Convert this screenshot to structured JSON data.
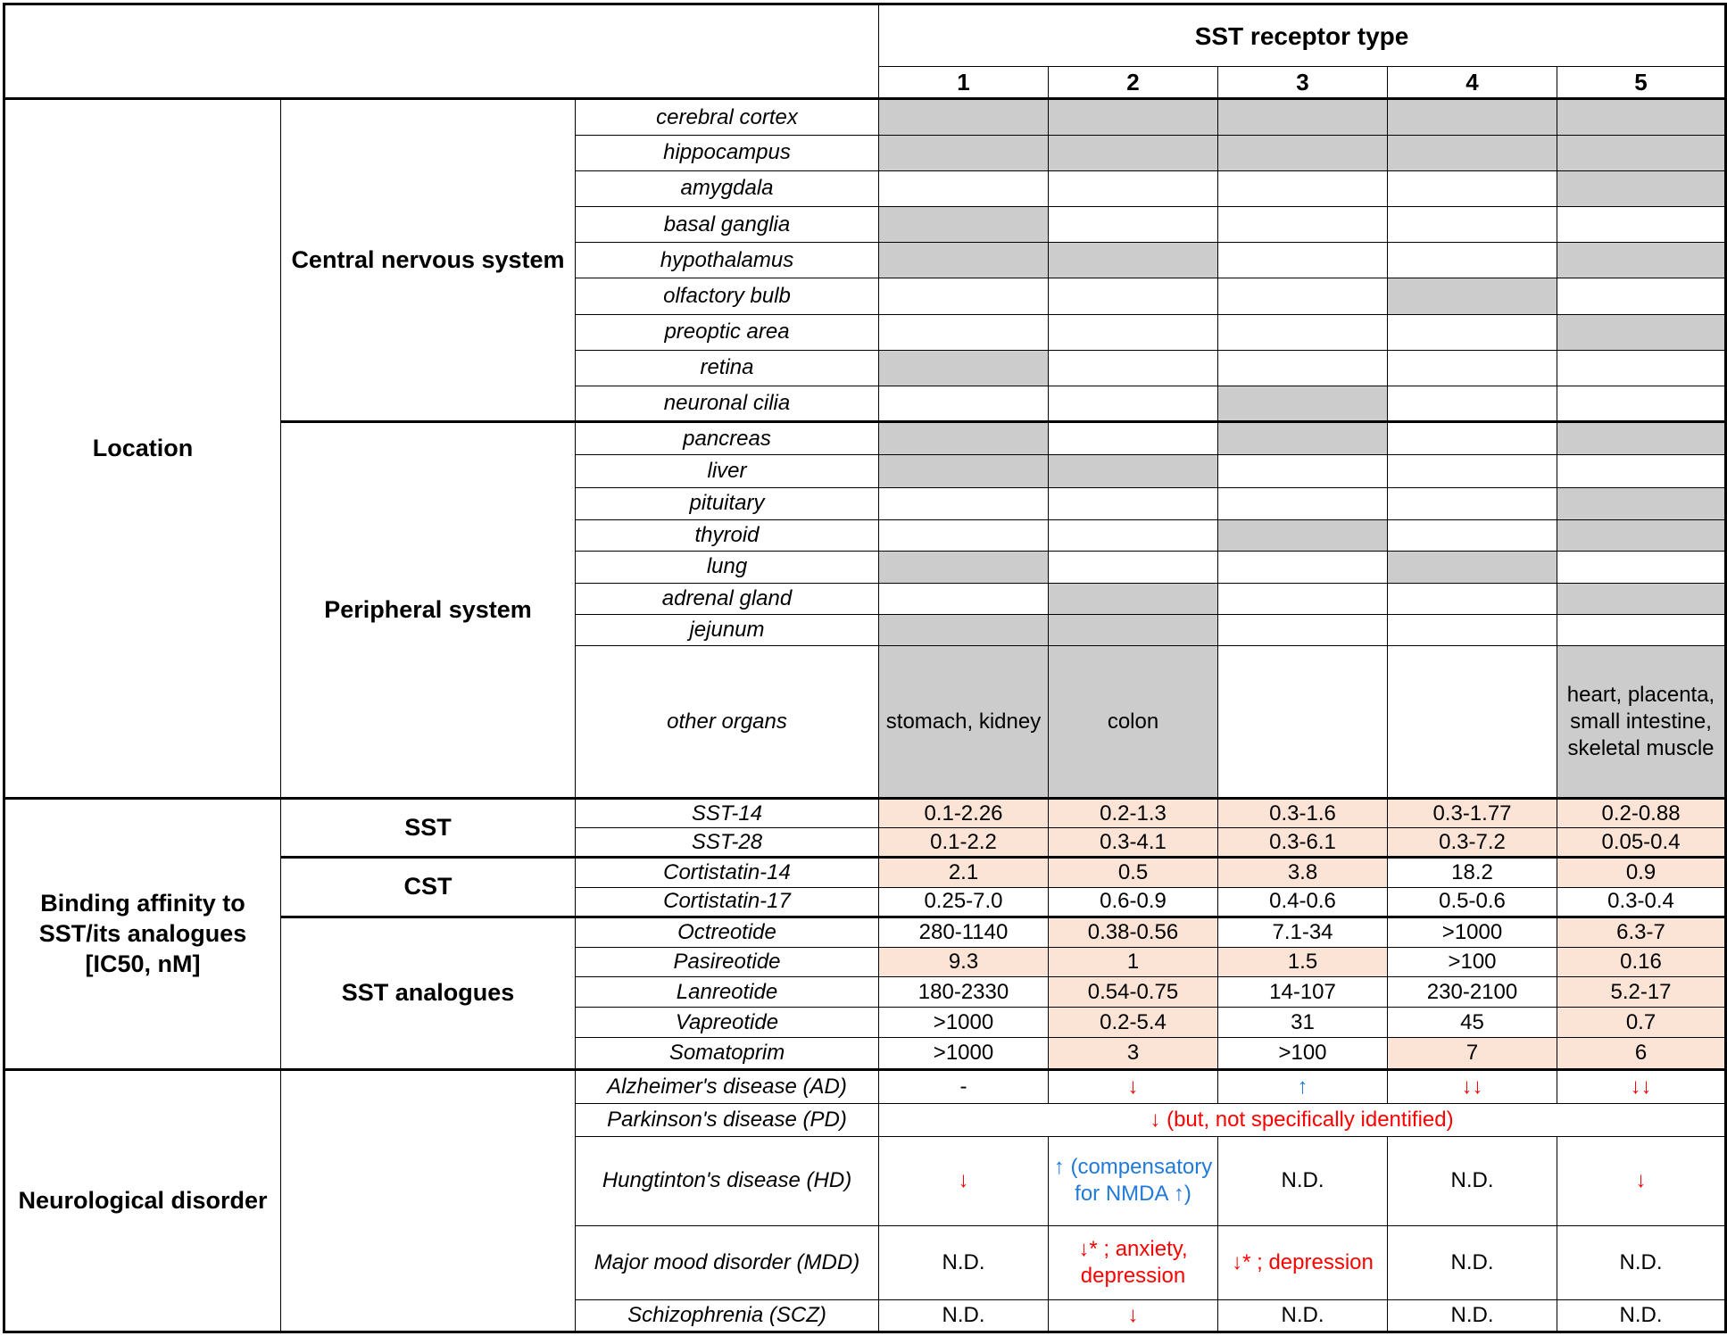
{
  "header": {
    "receptor_title": "SST receptor type",
    "receptor_types": [
      "1",
      "2",
      "3",
      "4",
      "5"
    ]
  },
  "sections": {
    "location": "Location",
    "binding": "Binding affinity to SST/its analogues [IC50, nM]",
    "neuro": "Neurological disorder"
  },
  "subgroups": {
    "cns": "Central nervous system",
    "peripheral": "Peripheral system",
    "sst": "SST",
    "cst": "CST",
    "analogues": "SST analogues"
  },
  "location_rows": [
    {
      "label": "cerebral cortex",
      "shade": [
        true,
        true,
        true,
        true,
        true
      ]
    },
    {
      "label": "hippocampus",
      "shade": [
        true,
        true,
        true,
        true,
        true
      ]
    },
    {
      "label": "amygdala",
      "shade": [
        false,
        false,
        false,
        false,
        true
      ]
    },
    {
      "label": "basal ganglia",
      "shade": [
        true,
        false,
        false,
        false,
        false
      ]
    },
    {
      "label": "hypothalamus",
      "shade": [
        true,
        true,
        false,
        false,
        true
      ]
    },
    {
      "label": "olfactory bulb",
      "shade": [
        false,
        false,
        false,
        true,
        false
      ]
    },
    {
      "label": "preoptic area",
      "shade": [
        false,
        false,
        false,
        false,
        true
      ]
    },
    {
      "label": "retina",
      "shade": [
        true,
        false,
        false,
        false,
        false
      ]
    },
    {
      "label": "neuronal cilia",
      "shade": [
        false,
        false,
        true,
        false,
        false
      ]
    },
    {
      "label": "pancreas",
      "shade": [
        true,
        false,
        true,
        false,
        true
      ]
    },
    {
      "label": "liver",
      "shade": [
        true,
        true,
        false,
        false,
        false
      ]
    },
    {
      "label": "pituitary",
      "shade": [
        false,
        false,
        false,
        false,
        true
      ]
    },
    {
      "label": "thyroid",
      "shade": [
        false,
        false,
        true,
        false,
        true
      ]
    },
    {
      "label": "lung",
      "shade": [
        true,
        false,
        false,
        true,
        false
      ]
    },
    {
      "label": "adrenal gland",
      "shade": [
        false,
        true,
        false,
        false,
        true
      ]
    },
    {
      "label": "jejunum",
      "shade": [
        true,
        true,
        false,
        false,
        false
      ]
    },
    {
      "label": "other organs",
      "shade": [
        true,
        true,
        false,
        false,
        true
      ]
    }
  ],
  "other_organs_text": {
    "r1": "stomach, kidney",
    "r2": "colon",
    "r5": "heart, placenta, small intestine, skeletal muscle"
  },
  "binding_rows": [
    {
      "label": "SST-14",
      "values": [
        "0.1-2.26",
        "0.2-1.3",
        "0.3-1.6",
        "0.3-1.77",
        "0.2-0.88"
      ],
      "peach": [
        true,
        true,
        true,
        true,
        true
      ]
    },
    {
      "label": "SST-28",
      "values": [
        "0.1-2.2",
        "0.3-4.1",
        "0.3-6.1",
        "0.3-7.2",
        "0.05-0.4"
      ],
      "peach": [
        true,
        true,
        true,
        true,
        true
      ]
    },
    {
      "label": "Cortistatin-14",
      "values": [
        "2.1",
        "0.5",
        "3.8",
        "18.2",
        "0.9"
      ],
      "peach": [
        true,
        true,
        true,
        false,
        true
      ]
    },
    {
      "label": "Cortistatin-17",
      "values": [
        "0.25-7.0",
        "0.6-0.9",
        "0.4-0.6",
        "0.5-0.6",
        "0.3-0.4"
      ],
      "peach": [
        false,
        false,
        false,
        false,
        false
      ]
    },
    {
      "label": "Octreotide",
      "values": [
        "280-1140",
        "0.38-0.56",
        "7.1-34",
        ">1000",
        "6.3-7"
      ],
      "peach": [
        false,
        true,
        false,
        false,
        true
      ]
    },
    {
      "label": "Pasireotide",
      "values": [
        "9.3",
        "1",
        "1.5",
        ">100",
        "0.16"
      ],
      "peach": [
        true,
        true,
        true,
        false,
        true
      ]
    },
    {
      "label": "Lanreotide",
      "values": [
        "180-2330",
        "0.54-0.75",
        "14-107",
        "230-2100",
        "5.2-17"
      ],
      "peach": [
        false,
        true,
        false,
        false,
        true
      ]
    },
    {
      "label": "Vapreotide",
      "values": [
        ">1000",
        "0.2-5.4",
        "31",
        "45",
        "0.7"
      ],
      "peach": [
        false,
        true,
        false,
        false,
        true
      ]
    },
    {
      "label": "Somatoprim",
      "values": [
        ">1000",
        "3",
        ">100",
        "7",
        "6"
      ],
      "peach": [
        false,
        true,
        false,
        true,
        true
      ]
    }
  ],
  "neuro_rows": {
    "ad": {
      "label": "Alzheimer's disease (AD)",
      "values": [
        "-",
        "↓",
        "↑",
        "↓↓",
        "↓↓"
      ]
    },
    "pd": {
      "label": "Parkinson's disease (PD)",
      "value": "↓ (but, not specifically identified)"
    },
    "hd": {
      "label": "Hungtinton's disease (HD)",
      "values": [
        "↓",
        "↑ (compensatory for NMDA ↑)",
        "N.D.",
        "N.D.",
        "↓"
      ]
    },
    "mdd": {
      "label": "Major mood disorder (MDD)",
      "values": [
        "N.D.",
        "↓* ; anxiety, depression",
        "↓* ; depression",
        "N.D.",
        "N.D."
      ]
    },
    "scz": {
      "label": "Schizophrenia (SCZ)",
      "values": [
        "N.D.",
        "↓",
        "N.D.",
        "N.D.",
        "N.D."
      ]
    }
  },
  "colors": {
    "shade": "#cccccc",
    "peach": "#fbe4d6",
    "decrease": "#ff0000",
    "increase": "#1f7ad8"
  }
}
